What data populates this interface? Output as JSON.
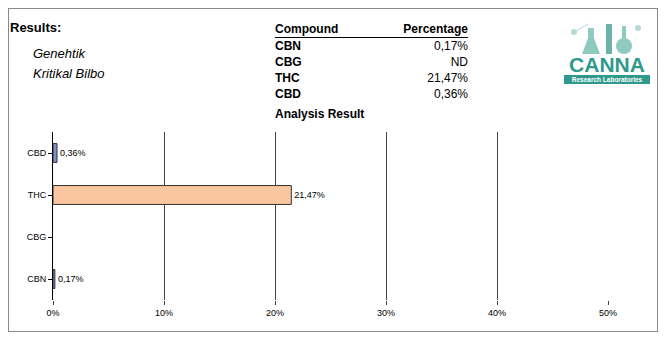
{
  "results_label": "Results:",
  "sample": [
    "Genehtik",
    "Kritikal Bilbo"
  ],
  "table": {
    "header": [
      "Compound",
      "Percentage"
    ],
    "rows": [
      [
        "CBN",
        "0,17%"
      ],
      [
        "CBG",
        "ND"
      ],
      [
        "THC",
        "21,47%"
      ],
      [
        "CBD",
        "0,36%"
      ]
    ]
  },
  "logo": {
    "text": "CANNA",
    "subtitle": "Research Laboratories"
  },
  "chart_data": {
    "type": "bar",
    "title": "Analysis Result",
    "orientation": "horizontal",
    "categories": [
      "CBD",
      "THC",
      "CBG",
      "CBN"
    ],
    "values": [
      0.36,
      21.47,
      null,
      0.17
    ],
    "value_labels": [
      "0,36%",
      "21,47%",
      null,
      "0,17%"
    ],
    "colors": [
      "#7f8fc8",
      "#f9c6a0",
      "#7f8fc8",
      "#7f8fc8"
    ],
    "data_labels": true,
    "grid": true,
    "xlim": [
      0,
      50
    ],
    "xticks": [
      {
        "value": 0,
        "label": "0%"
      },
      {
        "value": 10,
        "label": "10%"
      },
      {
        "value": 20,
        "label": "20%"
      },
      {
        "value": 30,
        "label": "30%"
      },
      {
        "value": 40,
        "label": "40%"
      },
      {
        "value": 50,
        "label": "50%"
      }
    ]
  }
}
